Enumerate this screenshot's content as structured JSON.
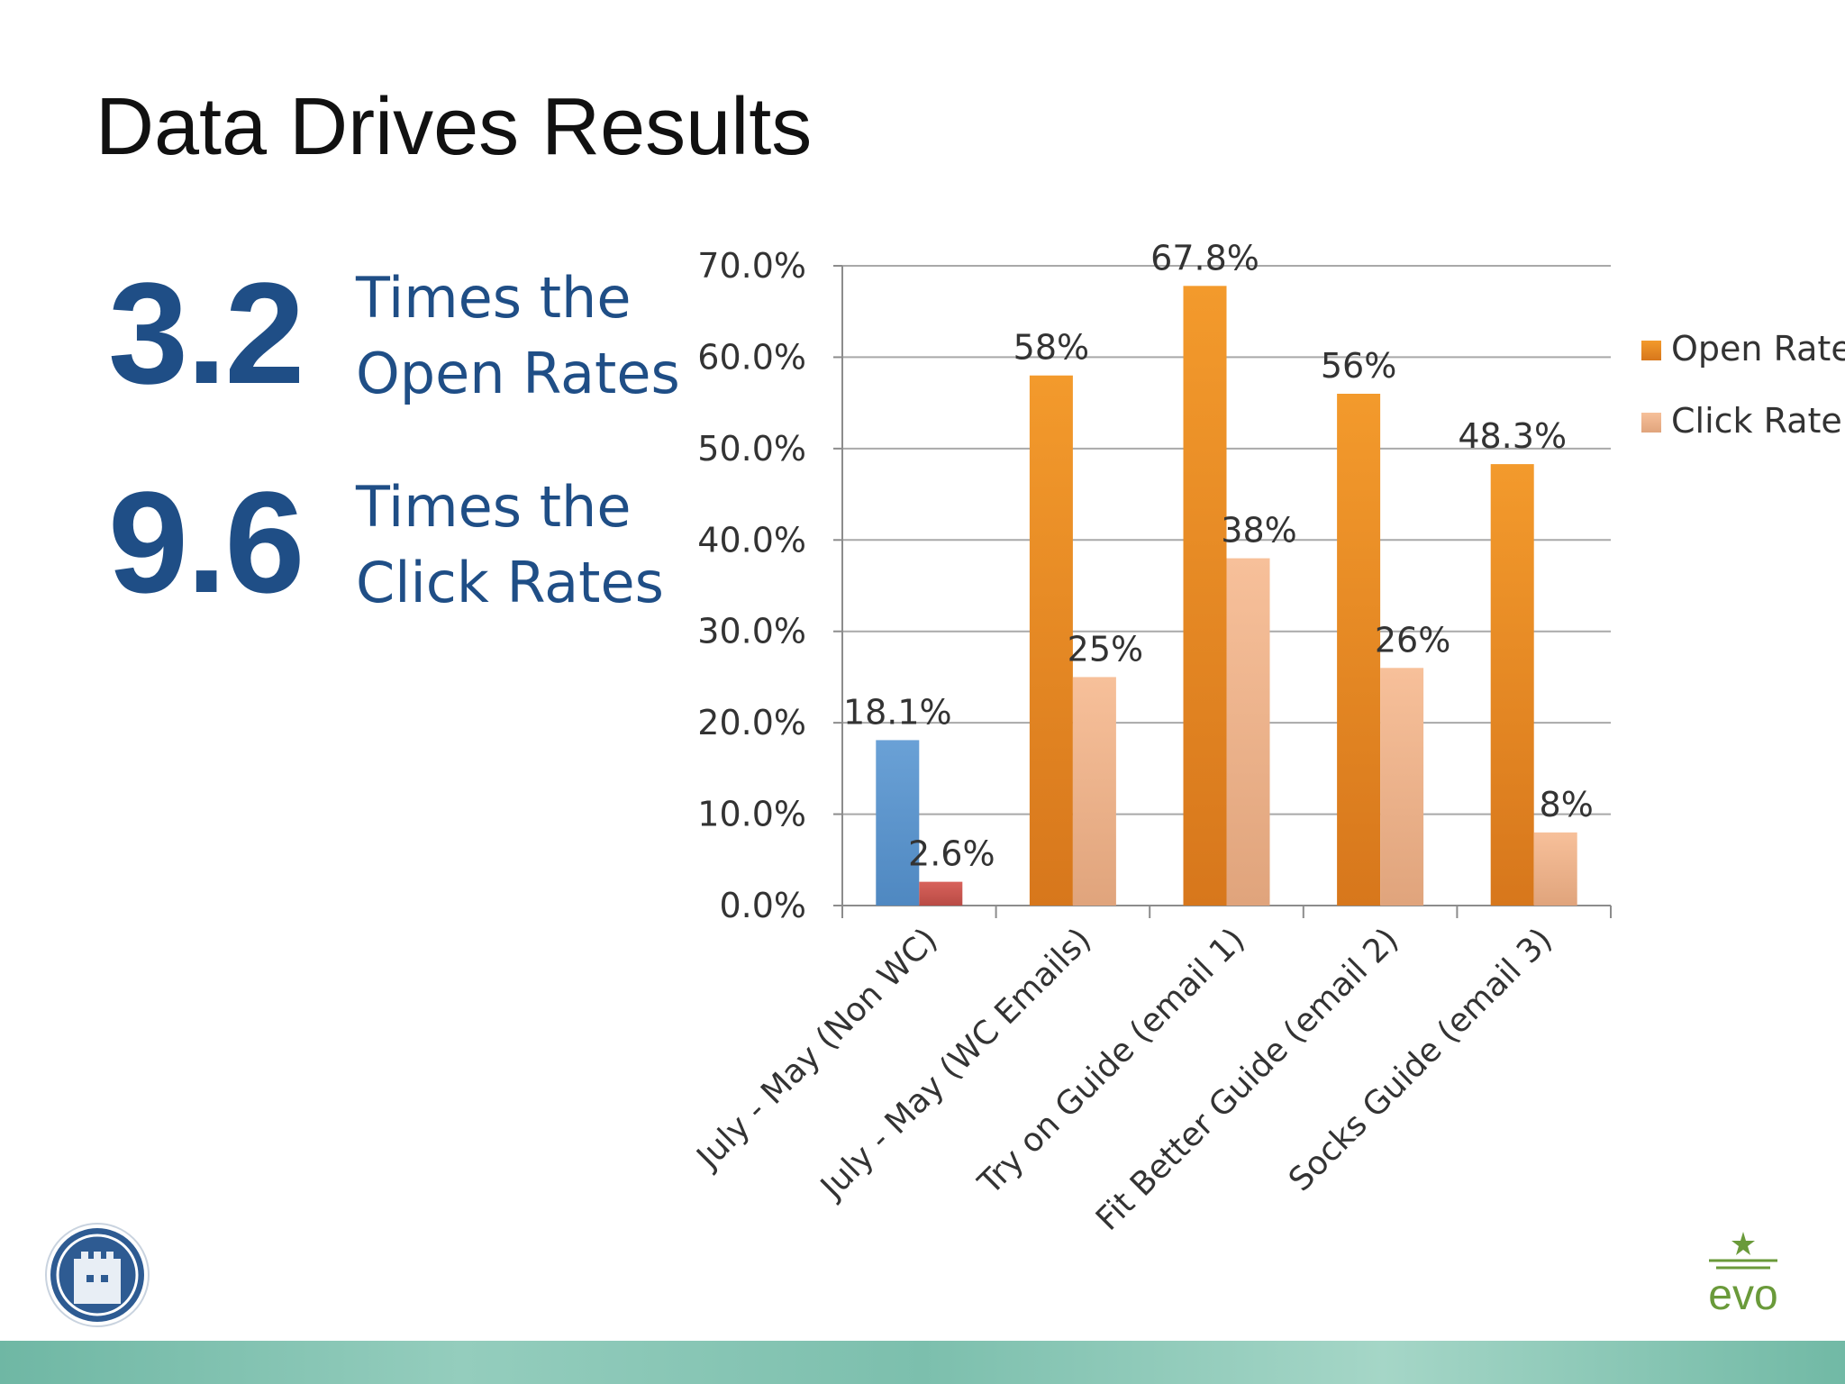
{
  "slide": {
    "title": "Data Drives Results"
  },
  "stats": [
    {
      "number": "3.2",
      "line1": "Times the",
      "line2": "Open Rates"
    },
    {
      "number": "9.6",
      "line1": "Times the",
      "line2": "Click Rates"
    }
  ],
  "brand": {
    "right_logo_text": "evo",
    "colors": {
      "stat_blue": "#1f4e86",
      "open_rate": "#e88a24",
      "click_rate": "#f4b68c",
      "baseline_open": "#5b96cf",
      "baseline_click": "#cc5a54",
      "footer": "#7cbfad"
    }
  },
  "chart_data": {
    "type": "bar",
    "title": "",
    "xlabel": "",
    "ylabel": "",
    "ylim": [
      0,
      70
    ],
    "y_ticks": [
      "0.0%",
      "10.0%",
      "20.0%",
      "30.0%",
      "40.0%",
      "50.0%",
      "60.0%",
      "70.0%"
    ],
    "grid": true,
    "legend_position": "right",
    "categories": [
      "July - May (Non WC)",
      "July - May (WC Emails)",
      "Try on Guide (email 1)",
      "Fit Better Guide (email 2)",
      "Socks Guide (email 3)"
    ],
    "series": [
      {
        "name": "Open Rate",
        "values": [
          18.1,
          58,
          67.8,
          56,
          48.3
        ],
        "labels": [
          "18.1%",
          "58%",
          "67.8%",
          "56%",
          "48.3%"
        ]
      },
      {
        "name": "Click Rate",
        "values": [
          2.6,
          25,
          38,
          26,
          8
        ],
        "labels": [
          "2.6%",
          "25%",
          "38%",
          "26%",
          "8%"
        ]
      }
    ]
  }
}
